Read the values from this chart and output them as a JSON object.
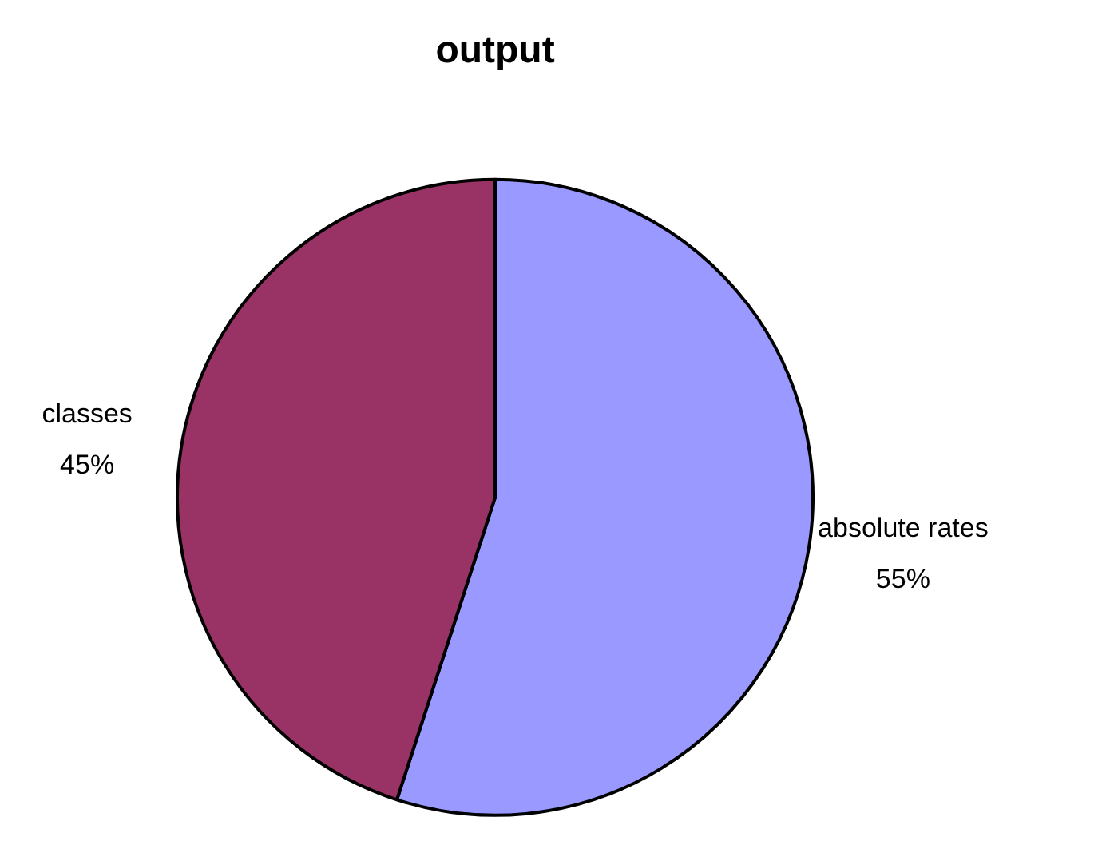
{
  "chart_data": {
    "type": "pie",
    "title": "output",
    "categories": [
      "absolute rates",
      "classes"
    ],
    "values": [
      55,
      45
    ],
    "colors": [
      "#9999ff",
      "#993366"
    ],
    "value_labels": [
      "55%",
      "45%"
    ],
    "legend": false
  }
}
